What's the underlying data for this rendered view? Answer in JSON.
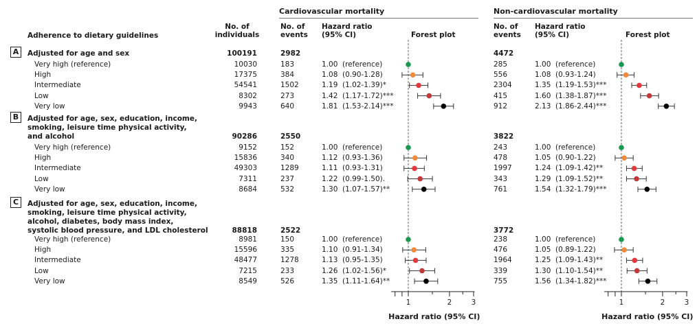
{
  "header": {
    "cardio_group": "Cardiovascular mortality",
    "noncardio_group": "Non-cardiovascular mortality",
    "adherence": "Adherence to dietary guidelines",
    "n_individuals_l1": "No. of",
    "n_individuals_l2": "individuals",
    "n_events_l1": "No. of",
    "n_events_l2": "events",
    "hr_l1": "Hazard ratio",
    "hr_l2": "(95% CI)",
    "forest": "Forest plot"
  },
  "sections": [
    {
      "letter": "A",
      "title_lines": [
        "Adjusted for age and sex"
      ],
      "n_individuals": "100191",
      "cv_events": "2982",
      "ncv_events": "4472",
      "rows": [
        {
          "label": "Very high (reference)",
          "n": "10030",
          "cv_events": "183",
          "cv_hr": "1.00",
          "cv_ci": "(reference)",
          "ncv_events": "285",
          "ncv_hr": "1.00",
          "ncv_ci": "(reference)"
        },
        {
          "label": "High",
          "n": "17375",
          "cv_events": "384",
          "cv_hr": "1.08",
          "cv_ci": "(0.90-1.28)",
          "ncv_events": "556",
          "ncv_hr": "1.08",
          "ncv_ci": "(0.93-1.24)"
        },
        {
          "label": "Intermediate",
          "n": "54541",
          "cv_events": "1502",
          "cv_hr": "1.19",
          "cv_ci": "(1.02-1.39)*",
          "ncv_events": "2304",
          "ncv_hr": "1.35",
          "ncv_ci": "(1.19-1.53)***"
        },
        {
          "label": "Low",
          "n": "8302",
          "cv_events": "273",
          "cv_hr": "1.42",
          "cv_ci": "(1.17-1.72)***",
          "ncv_events": "415",
          "ncv_hr": "1.60",
          "ncv_ci": "(1.38-1.87)***"
        },
        {
          "label": "Very low",
          "n": "9943",
          "cv_events": "640",
          "cv_hr": "1.81",
          "cv_ci": "(1.53-2.14)***",
          "ncv_events": "912",
          "ncv_hr": "2.13",
          "ncv_ci": "(1.86-2.44)***"
        }
      ]
    },
    {
      "letter": "B",
      "title_lines": [
        "Adjusted for age, sex, education, income,",
        "smoking, leisure time physical activity,",
        "and alcohol"
      ],
      "n_individuals": "90286",
      "cv_events": "2550",
      "ncv_events": "3822",
      "rows": [
        {
          "label": "Very high (reference)",
          "n": "9152",
          "cv_events": "152",
          "cv_hr": "1.00",
          "cv_ci": "(reference)",
          "ncv_events": "243",
          "ncv_hr": "1.00",
          "ncv_ci": "(reference)"
        },
        {
          "label": "High",
          "n": "15836",
          "cv_events": "340",
          "cv_hr": "1.12",
          "cv_ci": "(0.93-1.36)",
          "ncv_events": "478",
          "ncv_hr": "1.05",
          "ncv_ci": "(0.90-1.22)"
        },
        {
          "label": "Intermediate",
          "n": "49303",
          "cv_events": "1289",
          "cv_hr": "1.11",
          "cv_ci": "(0.93-1.31)",
          "ncv_events": "1997",
          "ncv_hr": "1.24",
          "ncv_ci": "(1.09-1.42)**"
        },
        {
          "label": "Low",
          "n": "7311",
          "cv_events": "237",
          "cv_hr": "1.22",
          "cv_ci": "(0.99-1.50).",
          "ncv_events": "343",
          "ncv_hr": "1.29",
          "ncv_ci": "(1.09-1.52)**"
        },
        {
          "label": "Very low",
          "n": "8684",
          "cv_events": "532",
          "cv_hr": "1.30",
          "cv_ci": "(1.07-1.57)**",
          "ncv_events": "761",
          "ncv_hr": "1.54",
          "ncv_ci": "(1.32-1.79)***"
        }
      ]
    },
    {
      "letter": "C",
      "title_lines": [
        "Adjusted for age, sex, education, income,",
        "smoking, leisure time physical activity,",
        "alcohol, diabetes, body mass index,",
        "systolic blood pressure, and LDL cholesterol"
      ],
      "n_individuals": "88818",
      "cv_events": "2522",
      "ncv_events": "3772",
      "rows": [
        {
          "label": "Very high (reference)",
          "n": "8981",
          "cv_events": "150",
          "cv_hr": "1.00",
          "cv_ci": "(reference)",
          "ncv_events": "238",
          "ncv_hr": "1.00",
          "ncv_ci": "(reference)"
        },
        {
          "label": "High",
          "n": "15596",
          "cv_events": "335",
          "cv_hr": "1.10",
          "cv_ci": "(0.91-1.34)",
          "ncv_events": "476",
          "ncv_hr": "1.05",
          "ncv_ci": "(0.89-1.22)"
        },
        {
          "label": "Intermediate",
          "n": "48477",
          "cv_events": "1278",
          "cv_hr": "1.13",
          "cv_ci": "(0.95-1.35)",
          "ncv_events": "1964",
          "ncv_hr": "1.25",
          "ncv_ci": "(1.09-1.43)**"
        },
        {
          "label": "Low",
          "n": "7215",
          "cv_events": "233",
          "cv_hr": "1.26",
          "cv_ci": "(1.02-1.56)*",
          "ncv_events": "339",
          "ncv_hr": "1.30",
          "ncv_ci": "(1.10-1.54)**"
        },
        {
          "label": "Very low",
          "n": "8549",
          "cv_events": "526",
          "cv_hr": "1.35",
          "cv_ci": "(1.11-1.64)**",
          "ncv_events": "755",
          "ncv_hr": "1.56",
          "ncv_ci": "(1.34-1.82)***"
        }
      ]
    }
  ],
  "chart_data": {
    "type": "forest",
    "x_axis": {
      "scale": "log",
      "ticks": [
        "1",
        "2",
        "3"
      ],
      "xlabel": "Hazard ratio (95% CI)",
      "reference_line": 1
    },
    "categories": [
      "Very high (reference)",
      "High",
      "Intermediate",
      "Low",
      "Very low"
    ],
    "category_colors": [
      "#1a9850",
      "#f08a3c",
      "#e0393e",
      "#c0393b",
      "#000000"
    ],
    "panels": [
      {
        "name": "Cardiovascular mortality",
        "models": [
          {
            "model": "A",
            "hr": [
              1.0,
              1.08,
              1.19,
              1.42,
              1.81
            ],
            "lo": [
              1.0,
              0.9,
              1.02,
              1.17,
              1.53
            ],
            "hi": [
              1.0,
              1.28,
              1.39,
              1.72,
              2.14
            ]
          },
          {
            "model": "B",
            "hr": [
              1.0,
              1.12,
              1.11,
              1.22,
              1.3
            ],
            "lo": [
              1.0,
              0.93,
              0.93,
              0.99,
              1.07
            ],
            "hi": [
              1.0,
              1.36,
              1.31,
              1.5,
              1.57
            ]
          },
          {
            "model": "C",
            "hr": [
              1.0,
              1.1,
              1.13,
              1.26,
              1.35
            ],
            "lo": [
              1.0,
              0.91,
              0.95,
              1.02,
              1.11
            ],
            "hi": [
              1.0,
              1.34,
              1.35,
              1.56,
              1.64
            ]
          }
        ]
      },
      {
        "name": "Non-cardiovascular mortality",
        "models": [
          {
            "model": "A",
            "hr": [
              1.0,
              1.08,
              1.35,
              1.6,
              2.13
            ],
            "lo": [
              1.0,
              0.93,
              1.19,
              1.38,
              1.86
            ],
            "hi": [
              1.0,
              1.24,
              1.53,
              1.87,
              2.44
            ]
          },
          {
            "model": "B",
            "hr": [
              1.0,
              1.05,
              1.24,
              1.29,
              1.54
            ],
            "lo": [
              1.0,
              0.9,
              1.09,
              1.09,
              1.32
            ],
            "hi": [
              1.0,
              1.22,
              1.42,
              1.52,
              1.79
            ]
          },
          {
            "model": "C",
            "hr": [
              1.0,
              1.05,
              1.25,
              1.3,
              1.56
            ],
            "lo": [
              1.0,
              0.89,
              1.09,
              1.1,
              1.34
            ],
            "hi": [
              1.0,
              1.22,
              1.43,
              1.54,
              1.82
            ]
          }
        ]
      }
    ]
  }
}
